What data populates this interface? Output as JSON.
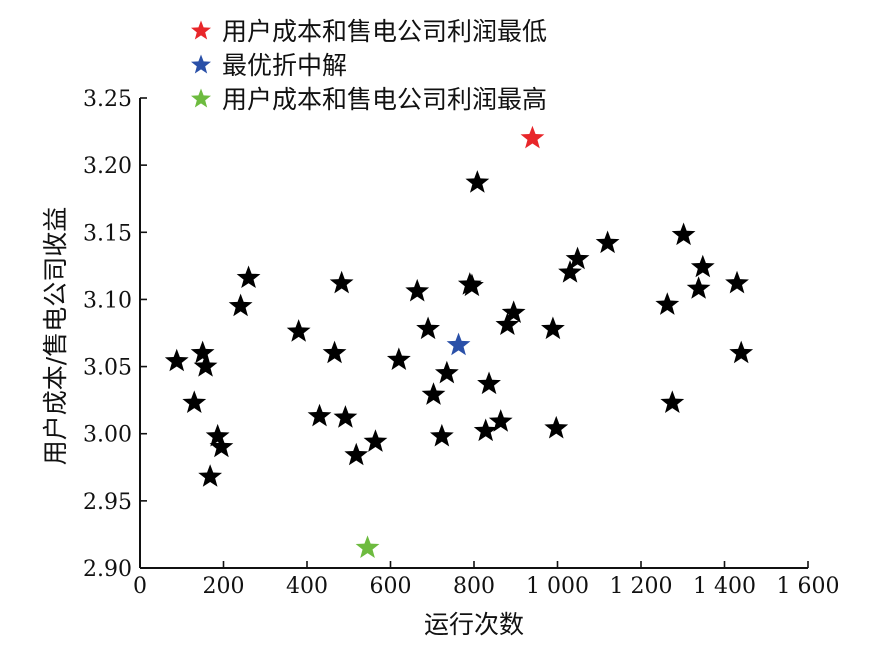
{
  "chart_data": {
    "type": "scatter",
    "xlabel": "运行次数",
    "ylabel": "用户成本/售电公司收益",
    "xlim": [
      0,
      1600
    ],
    "ylim": [
      2.9,
      3.25
    ],
    "x_ticks": [
      0,
      200,
      400,
      600,
      800,
      1000,
      1200,
      1400,
      1600
    ],
    "x_tick_labels": [
      "0",
      "200",
      "400",
      "600",
      "800",
      "1 000",
      "1 200",
      "1 400",
      "1 600"
    ],
    "y_ticks": [
      2.9,
      2.95,
      3.0,
      3.05,
      3.1,
      3.15,
      3.2,
      3.25
    ],
    "y_tick_labels": [
      "2.90",
      "2.95",
      "3.00",
      "3.05",
      "3.10",
      "3.15",
      "3.20",
      "3.25"
    ],
    "grid": false,
    "legend_position": "top-left",
    "legend": [
      {
        "label": "用户成本和售电公司利润最低",
        "color": "#e8262a"
      },
      {
        "label": "最优折中解",
        "color": "#2a50a8"
      },
      {
        "label": "用户成本和售电公司利润最高",
        "color": "#6dbb3f"
      }
    ],
    "highlight_points": [
      {
        "x": 940,
        "y": 3.22,
        "color": "#e8262a"
      },
      {
        "x": 763,
        "y": 3.066,
        "color": "#2a50a8"
      },
      {
        "x": 545,
        "y": 2.915,
        "color": "#6dbb3f"
      }
    ],
    "points_color": "#000000",
    "points": [
      [
        88,
        3.054
      ],
      [
        130,
        3.023
      ],
      [
        150,
        3.06
      ],
      [
        157,
        3.05
      ],
      [
        168,
        2.968
      ],
      [
        186,
        2.998
      ],
      [
        195,
        2.99
      ],
      [
        241,
        3.095
      ],
      [
        260,
        3.116
      ],
      [
        380,
        3.076
      ],
      [
        430,
        3.013
      ],
      [
        466,
        3.06
      ],
      [
        483,
        3.112
      ],
      [
        492,
        3.012
      ],
      [
        518,
        2.984
      ],
      [
        564,
        2.994
      ],
      [
        620,
        3.055
      ],
      [
        664,
        3.106
      ],
      [
        690,
        3.078
      ],
      [
        703,
        3.029
      ],
      [
        723,
        2.998
      ],
      [
        735,
        3.045
      ],
      [
        790,
        3.111
      ],
      [
        795,
        3.11
      ],
      [
        808,
        3.187
      ],
      [
        828,
        3.002
      ],
      [
        836,
        3.037
      ],
      [
        864,
        3.009
      ],
      [
        880,
        3.081
      ],
      [
        895,
        3.09
      ],
      [
        989,
        3.078
      ],
      [
        997,
        3.004
      ],
      [
        1030,
        3.12
      ],
      [
        1048,
        3.13
      ],
      [
        1120,
        3.142
      ],
      [
        1263,
        3.096
      ],
      [
        1275,
        3.023
      ],
      [
        1302,
        3.148
      ],
      [
        1338,
        3.108
      ],
      [
        1348,
        3.124
      ],
      [
        1430,
        3.112
      ],
      [
        1440,
        3.06
      ]
    ]
  }
}
